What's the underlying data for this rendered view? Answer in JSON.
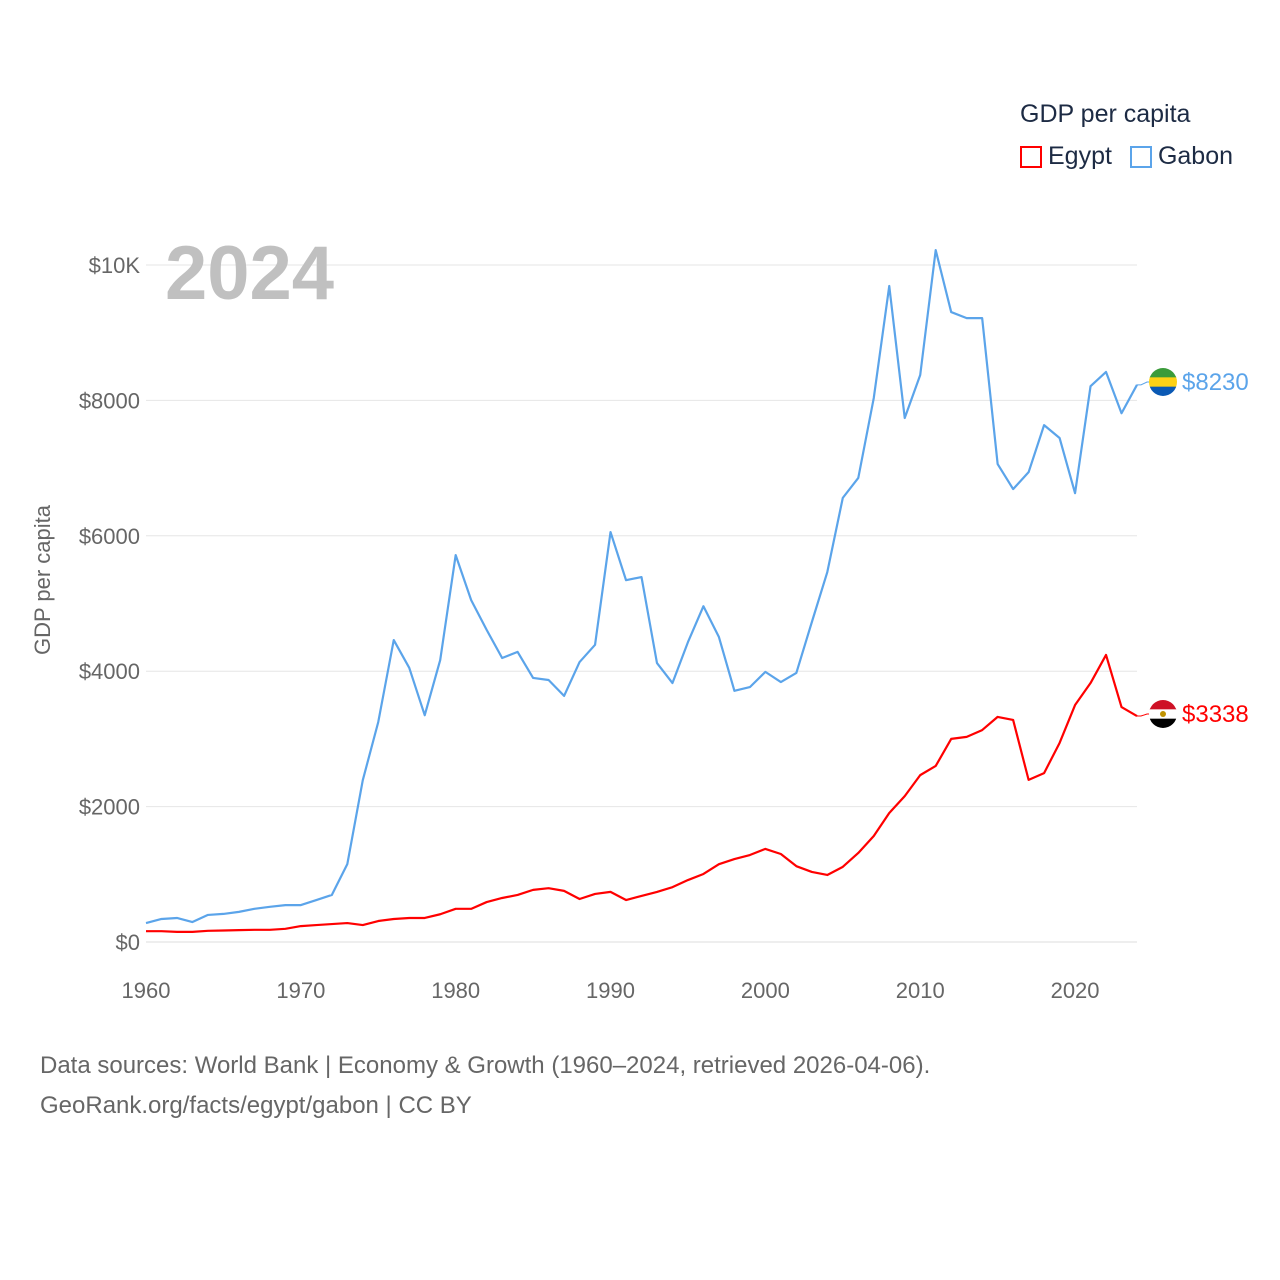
{
  "chart_data": {
    "type": "line",
    "title": "GDP per capita",
    "ylabel": "GDP per capita",
    "xlabel": "",
    "year_label": "2024",
    "xlim": [
      1960,
      2024
    ],
    "ylim": [
      0,
      10000
    ],
    "x_ticks": [
      "1960",
      "1970",
      "1980",
      "1990",
      "2000",
      "2010",
      "2020"
    ],
    "y_ticks": [
      {
        "v": 0,
        "label": "$0"
      },
      {
        "v": 2000,
        "label": "$2000"
      },
      {
        "v": 4000,
        "label": "$4000"
      },
      {
        "v": 6000,
        "label": "$6000"
      },
      {
        "v": 8000,
        "label": "$8000"
      },
      {
        "v": 10000,
        "label": "$10K"
      }
    ],
    "grid": true,
    "legend_position": "top-right",
    "x": [
      1960,
      1961,
      1962,
      1963,
      1964,
      1965,
      1966,
      1967,
      1968,
      1969,
      1970,
      1971,
      1972,
      1973,
      1974,
      1975,
      1976,
      1977,
      1978,
      1979,
      1980,
      1981,
      1982,
      1983,
      1984,
      1985,
      1986,
      1987,
      1988,
      1989,
      1990,
      1991,
      1992,
      1993,
      1994,
      1995,
      1996,
      1997,
      1998,
      1999,
      2000,
      2001,
      2002,
      2003,
      2004,
      2005,
      2006,
      2007,
      2008,
      2009,
      2010,
      2011,
      2012,
      2013,
      2014,
      2015,
      2016,
      2017,
      2018,
      2019,
      2020,
      2021,
      2022,
      2023,
      2024
    ],
    "series": [
      {
        "name": "Egypt",
        "color": "#ff0000",
        "end_label": "$3338",
        "flag": "egypt-flag",
        "values": [
          160,
          160,
          150,
          150,
          165,
          170,
          175,
          180,
          180,
          195,
          235,
          250,
          265,
          280,
          250,
          310,
          340,
          355,
          355,
          410,
          490,
          490,
          590,
          650,
          695,
          770,
          795,
          755,
          635,
          710,
          740,
          620,
          680,
          740,
          810,
          915,
          1005,
          1150,
          1225,
          1285,
          1375,
          1300,
          1120,
          1035,
          990,
          1110,
          1315,
          1565,
          1905,
          2155,
          2465,
          2600,
          3000,
          3030,
          3130,
          3325,
          3280,
          2395,
          2495,
          2940,
          3500,
          3825,
          4240,
          3470,
          3338
        ]
      },
      {
        "name": "Gabon",
        "color": "#5ba4ea",
        "end_label": "$8230",
        "flag": "gabon-flag",
        "values": [
          280,
          340,
          355,
          295,
          400,
          415,
          445,
          490,
          520,
          545,
          545,
          620,
          695,
          1150,
          2390,
          3250,
          4460,
          4050,
          3350,
          4165,
          5715,
          5050,
          4610,
          4195,
          4285,
          3900,
          3870,
          3635,
          4135,
          4390,
          6055,
          5345,
          5390,
          4120,
          3825,
          4430,
          4960,
          4505,
          3710,
          3765,
          3990,
          3840,
          3975,
          4725,
          5465,
          6560,
          6855,
          8035,
          9690,
          7740,
          8375,
          10220,
          9305,
          9215,
          9215,
          7060,
          6690,
          6940,
          7635,
          7445,
          6630,
          8210,
          8420,
          7810,
          8230
        ]
      }
    ]
  },
  "source": {
    "line1": "Data sources: World Bank | Economy & Growth (1960–2024, retrieved 2026-04-06).",
    "line2": "GeoRank.org/facts/egypt/gabon | CC BY"
  }
}
